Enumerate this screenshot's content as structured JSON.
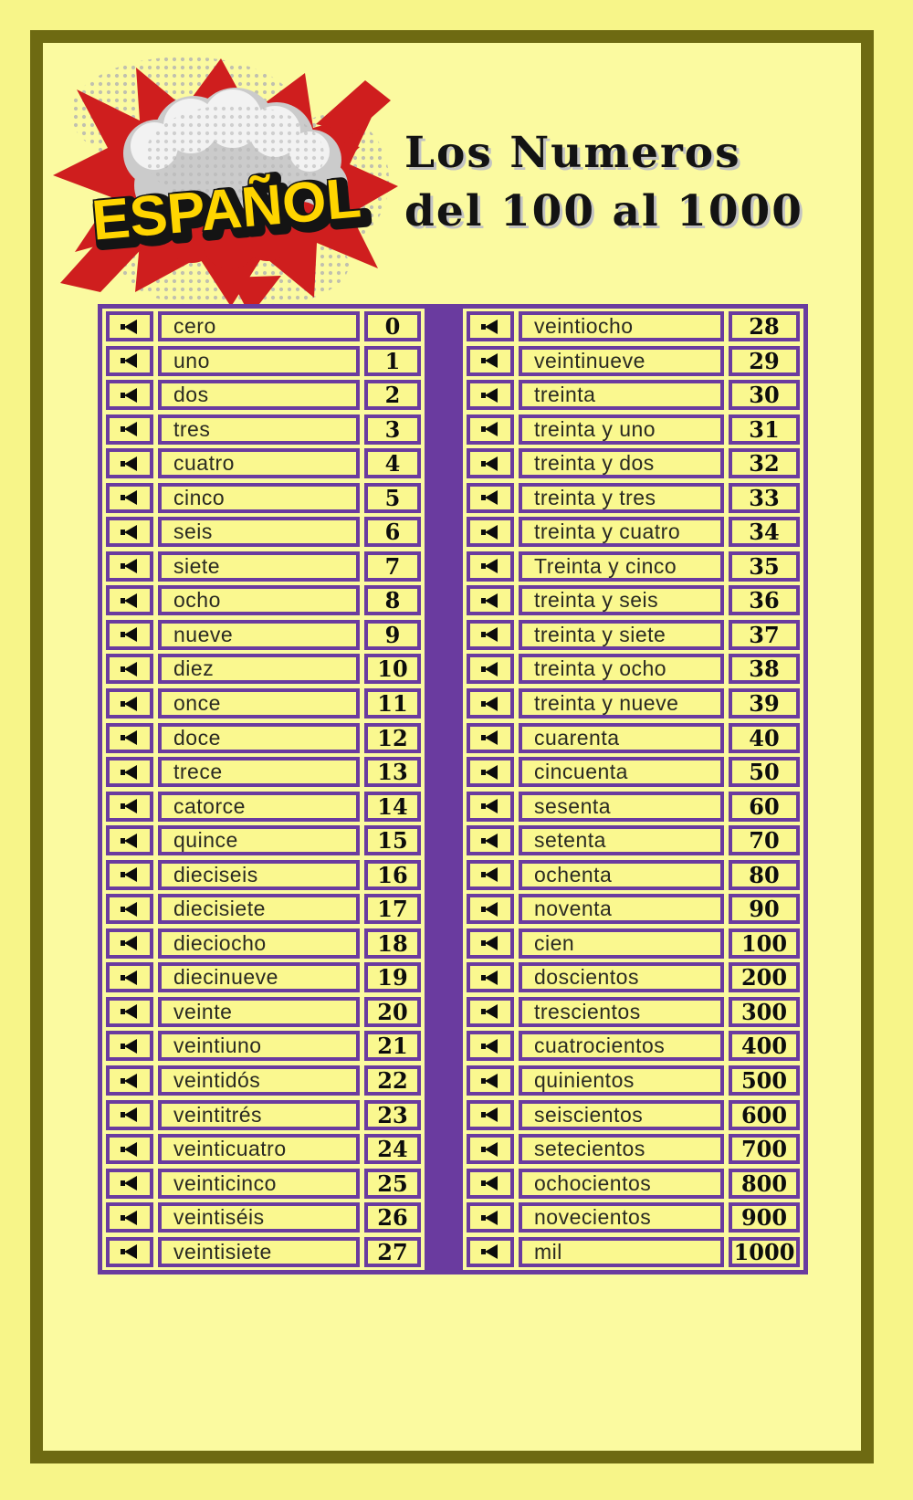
{
  "page": {
    "logo_text": "ESPAÑOL",
    "title_line1": "Los Numeros",
    "title_line2": "del 100 al 1000"
  },
  "colors": {
    "outer_background": "#f7f589",
    "panel_background": "#fbfaa0",
    "frame_border": "#6e6a12",
    "table_purple": "#6a3b9f",
    "cell_background": "#faf88f",
    "logo_red": "#cf1e1e",
    "logo_yellow": "#ffd500",
    "cloud_gray": "#cbcbcb",
    "text_dark": "#2a2a22"
  },
  "icons": {
    "row_icon": "speaker-icon"
  },
  "tables": {
    "left": {
      "rows": [
        {
          "word": "cero",
          "value": "0"
        },
        {
          "word": "uno",
          "value": "1"
        },
        {
          "word": "dos",
          "value": "2"
        },
        {
          "word": "tres",
          "value": "3"
        },
        {
          "word": "cuatro",
          "value": "4"
        },
        {
          "word": "cinco",
          "value": "5"
        },
        {
          "word": "seis",
          "value": "6"
        },
        {
          "word": "siete",
          "value": "7"
        },
        {
          "word": "ocho",
          "value": "8"
        },
        {
          "word": "nueve",
          "value": "9"
        },
        {
          "word": "diez",
          "value": "10"
        },
        {
          "word": "once",
          "value": "11"
        },
        {
          "word": "doce",
          "value": "12"
        },
        {
          "word": "trece",
          "value": "13"
        },
        {
          "word": "catorce",
          "value": "14"
        },
        {
          "word": "quince",
          "value": "15"
        },
        {
          "word": "dieciseis",
          "value": "16"
        },
        {
          "word": "diecisiete",
          "value": "17"
        },
        {
          "word": "dieciocho",
          "value": "18"
        },
        {
          "word": "diecinueve",
          "value": "19"
        },
        {
          "word": "veinte",
          "value": "20"
        },
        {
          "word": "veintiuno",
          "value": "21"
        },
        {
          "word": "veintidós",
          "value": "22"
        },
        {
          "word": "veintitrés",
          "value": "23"
        },
        {
          "word": "veinticuatro",
          "value": "24"
        },
        {
          "word": "veinticinco",
          "value": "25"
        },
        {
          "word": "veintiséis",
          "value": "26"
        },
        {
          "word": "veintisiete",
          "value": "27"
        }
      ]
    },
    "right": {
      "rows": [
        {
          "word": "veintiocho",
          "value": "28"
        },
        {
          "word": "veintinueve",
          "value": "29"
        },
        {
          "word": "treinta",
          "value": "30"
        },
        {
          "word": "treinta y uno",
          "value": "31"
        },
        {
          "word": "treinta y dos",
          "value": "32"
        },
        {
          "word": "treinta y tres",
          "value": "33"
        },
        {
          "word": "treinta y cuatro",
          "value": "34"
        },
        {
          "word": "Treinta y cinco",
          "value": "35"
        },
        {
          "word": "treinta y seis",
          "value": "36"
        },
        {
          "word": "treinta y siete",
          "value": "37"
        },
        {
          "word": "treinta y ocho",
          "value": "38"
        },
        {
          "word": "treinta y nueve",
          "value": "39"
        },
        {
          "word": "cuarenta",
          "value": "40"
        },
        {
          "word": "cincuenta",
          "value": "50"
        },
        {
          "word": "sesenta",
          "value": "60"
        },
        {
          "word": "setenta",
          "value": "70"
        },
        {
          "word": "ochenta",
          "value": "80"
        },
        {
          "word": "noventa",
          "value": "90"
        },
        {
          "word": "cien",
          "value": "100"
        },
        {
          "word": "doscientos",
          "value": "200"
        },
        {
          "word": "trescientos",
          "value": "300"
        },
        {
          "word": "cuatrocientos",
          "value": "400"
        },
        {
          "word": "quinientos",
          "value": "500"
        },
        {
          "word": "seiscientos",
          "value": "600"
        },
        {
          "word": "setecientos",
          "value": "700"
        },
        {
          "word": "ochocientos",
          "value": "800"
        },
        {
          "word": "novecientos",
          "value": "900"
        },
        {
          "word": "mil",
          "value": "1000"
        }
      ]
    }
  }
}
